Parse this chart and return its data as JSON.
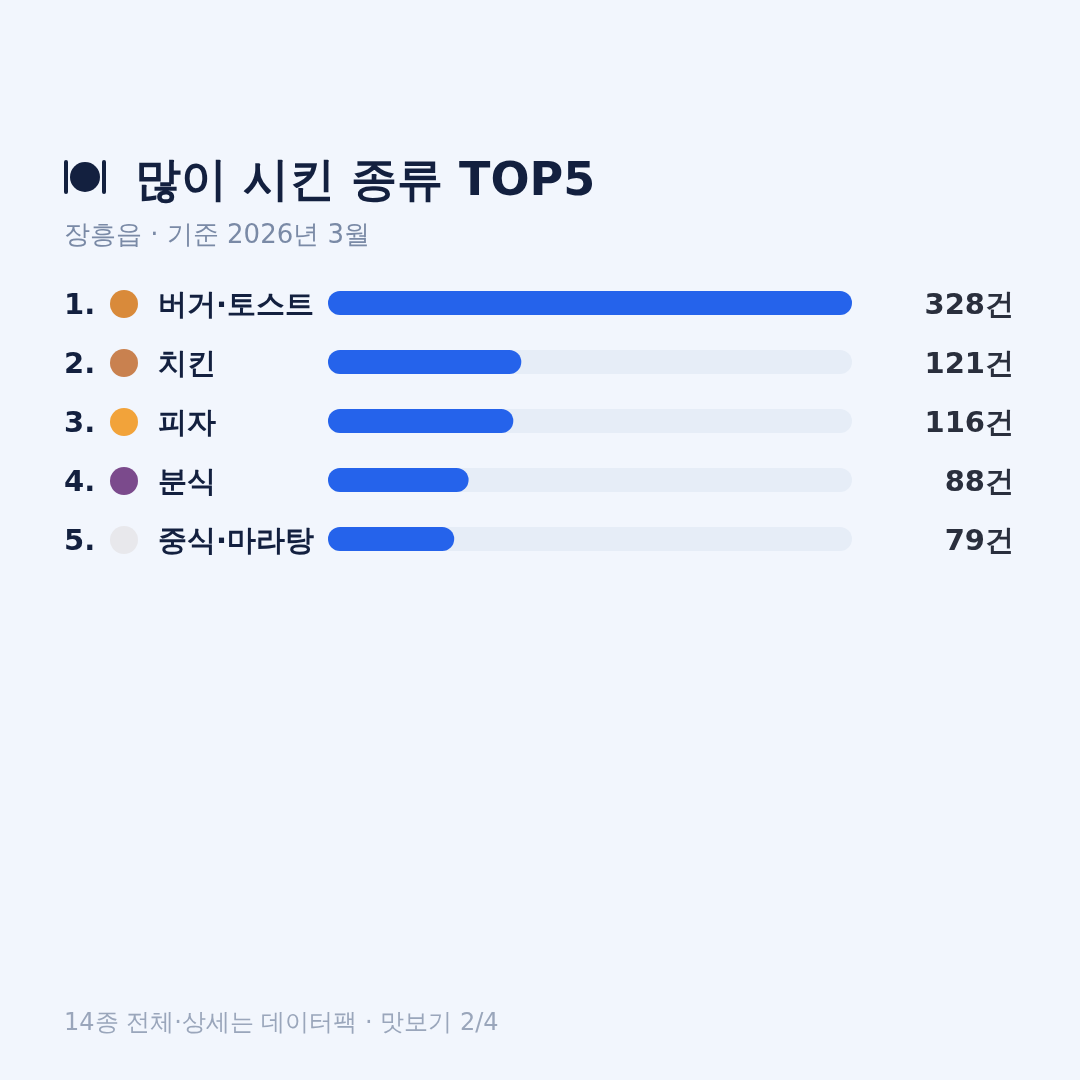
{
  "chart_data": {
    "type": "bar",
    "orientation": "horizontal",
    "title": "많이 시킨 종류 TOP5",
    "subtitle": "장흥읍 · 기준 2026년 3월",
    "categories": [
      "1. 버거·토스트",
      "2. 치킨",
      "3. 피자",
      "4. 분식",
      "5. 중식·마라탕"
    ],
    "values": [
      328,
      121,
      116,
      88,
      79
    ],
    "value_labels": [
      "328건",
      "121건",
      "116건",
      "88건",
      "79건"
    ],
    "color": "#2563eb",
    "annotations": [
      "14종 전체·상세는 데이터팩 · 맛보기 2/4"
    ]
  }
}
